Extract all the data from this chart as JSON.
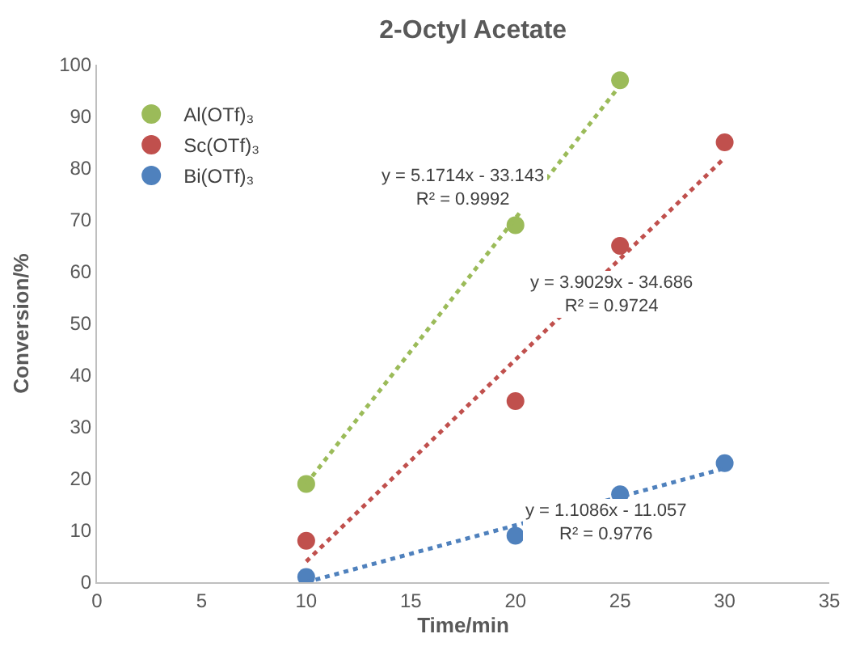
{
  "chart_data": {
    "type": "scatter",
    "title": "2-Octyl Acetate",
    "xlabel": "Time/min",
    "ylabel": "Conversion/%",
    "xlim": [
      0,
      35
    ],
    "xticks": [
      0,
      5,
      10,
      15,
      20,
      25,
      30,
      35
    ],
    "ylim": [
      0,
      100
    ],
    "yticks": [
      0,
      10,
      20,
      30,
      40,
      50,
      60,
      70,
      80,
      90,
      100
    ],
    "legend": "top left",
    "marker": "circle",
    "series": [
      {
        "name": "Al(OTf)₃",
        "color": "#9bbb59",
        "x": [
          10,
          20,
          25
        ],
        "values": [
          19,
          69,
          97
        ]
      },
      {
        "name": "Sc(OTf)₃",
        "color": "#c0504d",
        "x": [
          10,
          20,
          25,
          30
        ],
        "values": [
          8,
          35,
          65,
          85
        ]
      },
      {
        "name": "Bi(OTf)₃",
        "color": "#4f81bd",
        "x": [
          10,
          20,
          25,
          30
        ],
        "values": [
          1,
          9,
          17,
          23
        ]
      },
      {
        "type": "line",
        "color": "#9bbb59",
        "line_style": "dotted",
        "marker": "none",
        "x": [
          10,
          25
        ],
        "values": [
          19,
          96
        ]
      },
      {
        "type": "line",
        "color": "#c0504d",
        "line_style": "dotted",
        "marker": "none",
        "x": [
          10,
          30
        ],
        "values": [
          4,
          82
        ]
      },
      {
        "type": "line",
        "color": "#4f81bd",
        "line_style": "dotted",
        "marker": "none",
        "x": [
          10,
          30
        ],
        "values": [
          0,
          22
        ]
      }
    ],
    "annotations": [
      "y = 5.1714x - 33.143\nR² = 0.9992",
      "y = 3.9029x - 34.686\nR² = 0.9724",
      "y = 1.1086x - 11.057\nR² = 0.9776"
    ]
  }
}
